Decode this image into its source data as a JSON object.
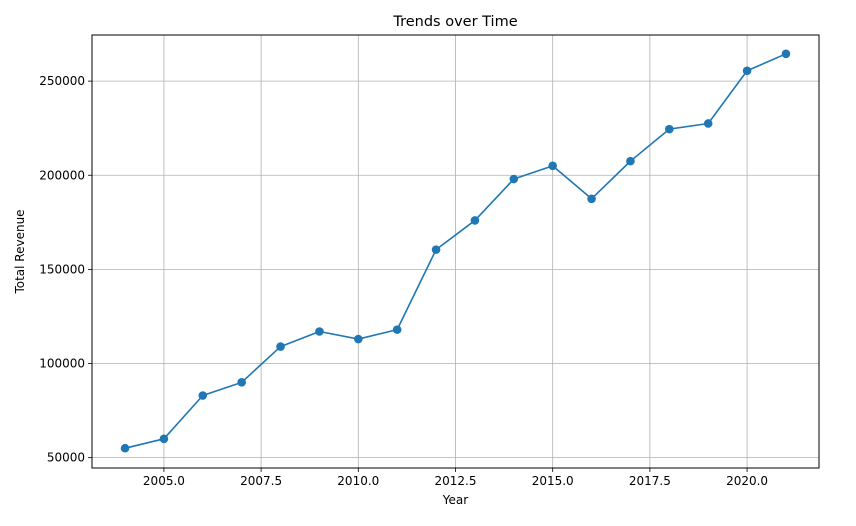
{
  "chart_data": {
    "type": "line",
    "title": "Trends over Time",
    "xlabel": "Year",
    "ylabel": "Total Revenue",
    "xlim": [
      2003.15,
      2021.85
    ],
    "ylim": [
      44500,
      274500
    ],
    "xticks": [
      2005.0,
      2007.5,
      2010.0,
      2012.5,
      2015.0,
      2017.5,
      2020.0
    ],
    "xtick_labels": [
      "2005.0",
      "2007.5",
      "2010.0",
      "2012.5",
      "2015.0",
      "2017.5",
      "2020.0"
    ],
    "yticks": [
      50000,
      100000,
      150000,
      200000,
      250000
    ],
    "ytick_labels": [
      "50000",
      "100000",
      "150000",
      "200000",
      "250000"
    ],
    "grid": true,
    "color": "#1f77b4",
    "marker": "circle",
    "series": [
      {
        "x": [
          2004,
          2005,
          2006,
          2007,
          2008,
          2009,
          2010,
          2011,
          2012,
          2013,
          2014,
          2015,
          2016,
          2017,
          2018,
          2019,
          2020,
          2021
        ],
        "values": [
          55000,
          60000,
          83000,
          90000,
          109000,
          117000,
          113000,
          118000,
          160500,
          176000,
          198000,
          205000,
          187500,
          207500,
          224500,
          227500,
          255500,
          264500
        ]
      }
    ]
  }
}
